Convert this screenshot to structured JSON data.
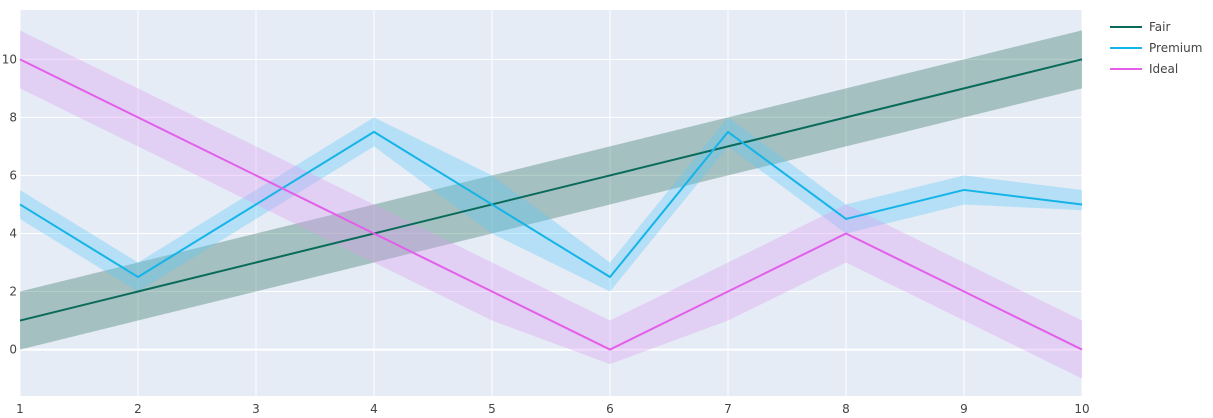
{
  "chart_data": {
    "type": "line",
    "title": "",
    "xlabel": "",
    "ylabel": "",
    "x": [
      1,
      2,
      3,
      4,
      5,
      6,
      7,
      8,
      9,
      10
    ],
    "xlim": [
      1,
      10
    ],
    "ylim": [
      -1.6,
      11.7
    ],
    "xticks": [
      "1",
      "2",
      "3",
      "4",
      "5",
      "6",
      "7",
      "8",
      "9",
      "10"
    ],
    "yticks": [
      "0",
      "2",
      "4",
      "6",
      "8",
      "10"
    ],
    "ytick_values": [
      0,
      2,
      4,
      6,
      8,
      10
    ],
    "grid": true,
    "legend_position": "top-right",
    "series": [
      {
        "name": "Fair",
        "color": "#0a6b5b",
        "band_color": "#2f6f5f",
        "values": [
          1,
          2,
          3,
          4,
          5,
          6,
          7,
          8,
          9,
          10
        ],
        "lower": [
          0,
          1,
          2,
          3,
          4,
          5,
          6,
          7,
          8,
          9
        ],
        "upper": [
          2,
          3,
          4,
          5,
          6,
          7,
          8,
          9,
          10,
          11
        ]
      },
      {
        "name": "Premium",
        "color": "#14b4e8",
        "band_color": "#5ac8f5",
        "values": [
          5,
          2.5,
          5,
          7.5,
          5,
          2.5,
          7.5,
          4.5,
          5.5,
          5
        ],
        "lower": [
          4.5,
          2,
          4.5,
          7,
          4,
          2,
          7,
          4,
          5,
          4.8
        ],
        "upper": [
          5.5,
          3,
          5.5,
          8,
          6,
          3,
          8,
          5,
          6,
          5.5
        ]
      },
      {
        "name": "Ideal",
        "color": "#e35fea",
        "band_color": "#dd9bf0",
        "values": [
          10,
          8,
          6,
          4,
          2,
          0,
          2,
          4,
          2,
          0
        ],
        "lower": [
          9,
          7,
          5,
          3,
          1,
          -0.5,
          1,
          3,
          1,
          -1
        ],
        "upper": [
          11,
          9,
          7,
          5,
          3,
          1,
          3,
          5,
          3,
          1
        ]
      }
    ]
  }
}
